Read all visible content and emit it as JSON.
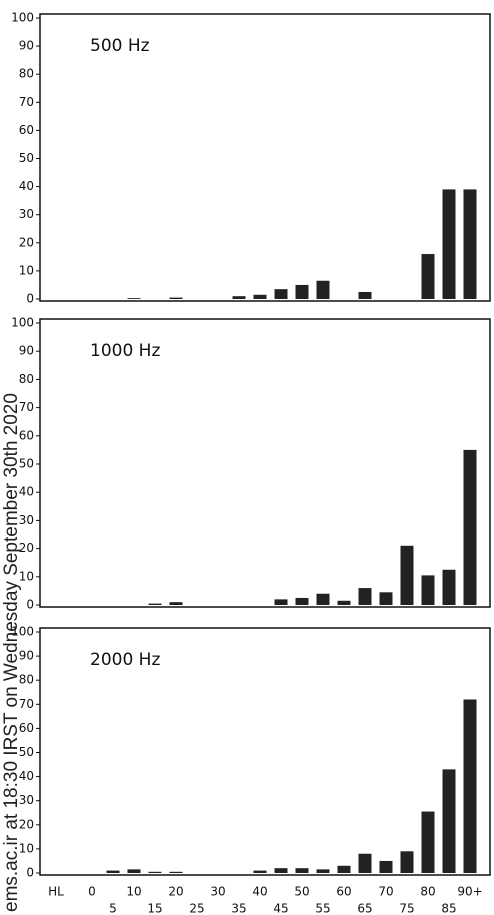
{
  "watermark": "ems.ac.ir at 18:30 IRST on Wednesday September 30th 2020",
  "chart_data": [
    {
      "type": "bar",
      "title": "500 Hz",
      "color": "#222222",
      "ylim": [
        0,
        100
      ],
      "yticks": [
        0,
        10,
        20,
        30,
        40,
        50,
        60,
        70,
        80,
        90,
        100
      ],
      "values": [
        0,
        0,
        0,
        0.3,
        0,
        0.5,
        0,
        0,
        1,
        1.5,
        3.5,
        5,
        6.5,
        0,
        2.5,
        0,
        0,
        16,
        39,
        39
      ]
    },
    {
      "type": "bar",
      "title": "1000 Hz",
      "color": "#222222",
      "ylim": [
        0,
        100
      ],
      "yticks": [
        0,
        10,
        20,
        30,
        40,
        50,
        60,
        70,
        80,
        90,
        100
      ],
      "values": [
        0,
        0,
        0,
        0,
        0.5,
        1,
        0,
        0,
        0,
        0,
        2,
        2.5,
        4,
        1.5,
        6,
        4.5,
        21,
        10.5,
        12.5,
        55
      ]
    },
    {
      "type": "bar",
      "title": "2000 Hz",
      "color": "#222222",
      "ylim": [
        0,
        100
      ],
      "yticks": [
        0,
        10,
        20,
        30,
        40,
        50,
        60,
        70,
        80,
        90,
        100
      ],
      "categories": [
        "HL",
        "0",
        "5",
        "10",
        "15",
        "20",
        "25",
        "30",
        "35",
        "40",
        "45",
        "50",
        "55",
        "60",
        "65",
        "70",
        "75",
        "80",
        "85",
        "90+"
      ],
      "values": [
        0,
        0,
        1,
        1.5,
        0.5,
        0.5,
        0,
        0,
        0,
        1,
        2,
        2,
        1.5,
        3,
        8,
        5,
        9,
        25.5,
        43,
        72
      ]
    }
  ]
}
